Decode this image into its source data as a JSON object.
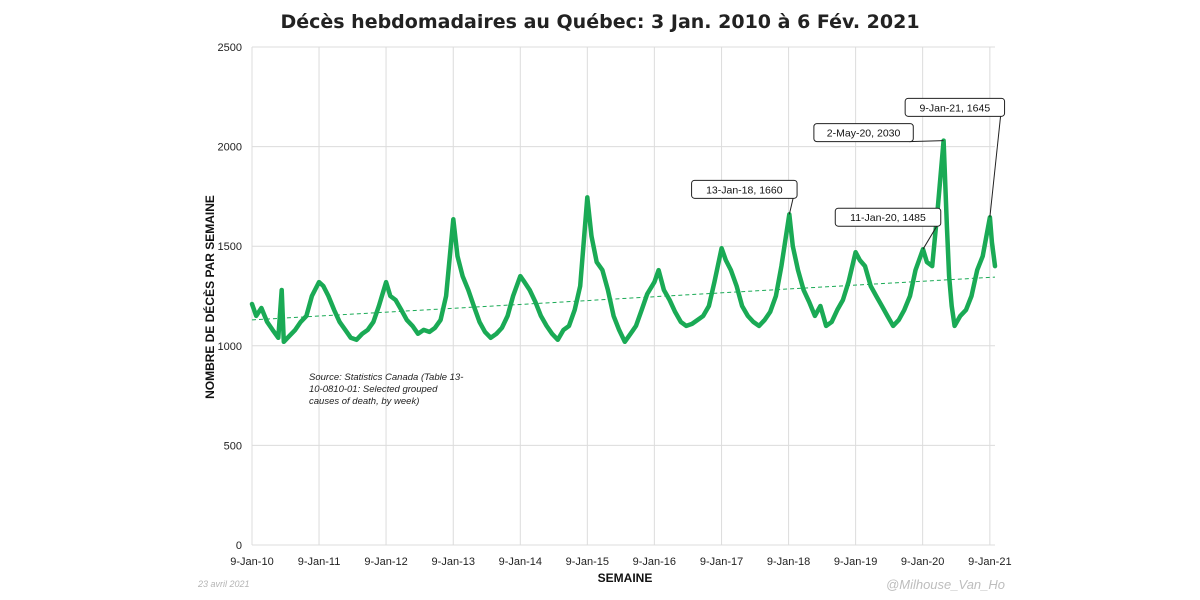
{
  "title": "Décès hebdomadaires au Québec: 3 Jan. 2010 à 6 Fév. 2021",
  "source_note": [
    "Source: Statistics Canada (Table 13-",
    "10-0810-01: Selected grouped",
    "causes of death, by week)"
  ],
  "footer": {
    "date": "23 avril 2021",
    "handle": "@Milhouse_Van_Ho"
  },
  "colors": {
    "line": "#1aaa55",
    "trend": "#1aaa55",
    "grid": "#dcdcdc"
  },
  "chart_data": {
    "type": "line",
    "title": "Décès hebdomadaires au Québec: 3 Jan. 2010 à 6 Fév. 2021",
    "xlabel": "SEMAINE",
    "ylabel": "NOMBRE DE DÉCÈS PAR SEMAINE",
    "ylim": [
      0,
      2500
    ],
    "y_ticks": [
      0,
      500,
      1000,
      1500,
      2000,
      2500
    ],
    "x_ticks": [
      {
        "x": "2010-01-09",
        "label": "9-Jan-10"
      },
      {
        "x": "2011-01-09",
        "label": "9-Jan-11"
      },
      {
        "x": "2012-01-09",
        "label": "9-Jan-12"
      },
      {
        "x": "2013-01-09",
        "label": "9-Jan-13"
      },
      {
        "x": "2014-01-09",
        "label": "9-Jan-14"
      },
      {
        "x": "2015-01-09",
        "label": "9-Jan-15"
      },
      {
        "x": "2016-01-09",
        "label": "9-Jan-16"
      },
      {
        "x": "2017-01-09",
        "label": "9-Jan-17"
      },
      {
        "x": "2018-01-09",
        "label": "9-Jan-18"
      },
      {
        "x": "2019-01-09",
        "label": "9-Jan-19"
      },
      {
        "x": "2020-01-09",
        "label": "9-Jan-20"
      },
      {
        "x": "2021-01-09",
        "label": "9-Jan-21"
      }
    ],
    "xlim": [
      "2010-01-09",
      "2021-02-06"
    ],
    "grid": true,
    "series": [
      {
        "points": [
          [
            "2010-01-09",
            1210
          ],
          [
            "2010-02-01",
            1150
          ],
          [
            "2010-03-01",
            1190
          ],
          [
            "2010-04-01",
            1120
          ],
          [
            "2010-05-01",
            1080
          ],
          [
            "2010-06-01",
            1040
          ],
          [
            "2010-06-20",
            1280
          ],
          [
            "2010-07-01",
            1020
          ],
          [
            "2010-08-01",
            1050
          ],
          [
            "2010-09-01",
            1080
          ],
          [
            "2010-10-01",
            1120
          ],
          [
            "2010-11-01",
            1150
          ],
          [
            "2010-12-01",
            1250
          ],
          [
            "2011-01-09",
            1320
          ],
          [
            "2011-02-01",
            1300
          ],
          [
            "2011-03-01",
            1250
          ],
          [
            "2011-04-01",
            1180
          ],
          [
            "2011-05-01",
            1120
          ],
          [
            "2011-06-01",
            1080
          ],
          [
            "2011-07-01",
            1040
          ],
          [
            "2011-08-01",
            1030
          ],
          [
            "2011-09-01",
            1060
          ],
          [
            "2011-10-01",
            1080
          ],
          [
            "2011-11-01",
            1120
          ],
          [
            "2011-12-01",
            1200
          ],
          [
            "2012-01-09",
            1320
          ],
          [
            "2012-02-01",
            1250
          ],
          [
            "2012-03-01",
            1230
          ],
          [
            "2012-04-01",
            1180
          ],
          [
            "2012-05-01",
            1130
          ],
          [
            "2012-06-01",
            1100
          ],
          [
            "2012-07-01",
            1060
          ],
          [
            "2012-08-01",
            1080
          ],
          [
            "2012-09-01",
            1070
          ],
          [
            "2012-10-01",
            1090
          ],
          [
            "2012-11-01",
            1130
          ],
          [
            "2012-12-01",
            1250
          ],
          [
            "2013-01-09",
            1635
          ],
          [
            "2013-02-01",
            1450
          ],
          [
            "2013-03-01",
            1350
          ],
          [
            "2013-04-01",
            1280
          ],
          [
            "2013-05-01",
            1200
          ],
          [
            "2013-06-01",
            1120
          ],
          [
            "2013-07-01",
            1070
          ],
          [
            "2013-08-01",
            1040
          ],
          [
            "2013-09-01",
            1060
          ],
          [
            "2013-10-01",
            1090
          ],
          [
            "2013-11-01",
            1150
          ],
          [
            "2013-12-01",
            1250
          ],
          [
            "2014-01-09",
            1350
          ],
          [
            "2014-02-01",
            1320
          ],
          [
            "2014-03-01",
            1280
          ],
          [
            "2014-04-01",
            1220
          ],
          [
            "2014-05-01",
            1150
          ],
          [
            "2014-06-01",
            1100
          ],
          [
            "2014-07-01",
            1060
          ],
          [
            "2014-08-01",
            1030
          ],
          [
            "2014-09-01",
            1080
          ],
          [
            "2014-10-01",
            1100
          ],
          [
            "2014-11-01",
            1180
          ],
          [
            "2014-12-01",
            1300
          ],
          [
            "2015-01-09",
            1745
          ],
          [
            "2015-02-01",
            1550
          ],
          [
            "2015-03-01",
            1420
          ],
          [
            "2015-04-01",
            1380
          ],
          [
            "2015-05-01",
            1280
          ],
          [
            "2015-06-01",
            1150
          ],
          [
            "2015-07-01",
            1080
          ],
          [
            "2015-08-01",
            1020
          ],
          [
            "2015-09-01",
            1060
          ],
          [
            "2015-10-01",
            1100
          ],
          [
            "2015-11-01",
            1180
          ],
          [
            "2015-12-01",
            1260
          ],
          [
            "2016-01-09",
            1320
          ],
          [
            "2016-02-01",
            1380
          ],
          [
            "2016-03-01",
            1280
          ],
          [
            "2016-04-01",
            1230
          ],
          [
            "2016-05-01",
            1170
          ],
          [
            "2016-06-01",
            1120
          ],
          [
            "2016-07-01",
            1100
          ],
          [
            "2016-08-01",
            1110
          ],
          [
            "2016-09-01",
            1130
          ],
          [
            "2016-10-01",
            1150
          ],
          [
            "2016-11-01",
            1200
          ],
          [
            "2016-12-01",
            1320
          ],
          [
            "2017-01-09",
            1490
          ],
          [
            "2017-02-01",
            1430
          ],
          [
            "2017-03-01",
            1380
          ],
          [
            "2017-04-01",
            1300
          ],
          [
            "2017-05-01",
            1200
          ],
          [
            "2017-06-01",
            1150
          ],
          [
            "2017-07-01",
            1120
          ],
          [
            "2017-08-01",
            1100
          ],
          [
            "2017-09-01",
            1130
          ],
          [
            "2017-10-01",
            1170
          ],
          [
            "2017-11-01",
            1250
          ],
          [
            "2017-12-01",
            1400
          ],
          [
            "2018-01-13",
            1660
          ],
          [
            "2018-02-01",
            1500
          ],
          [
            "2018-03-01",
            1380
          ],
          [
            "2018-04-01",
            1280
          ],
          [
            "2018-05-01",
            1220
          ],
          [
            "2018-06-01",
            1150
          ],
          [
            "2018-07-01",
            1200
          ],
          [
            "2018-08-01",
            1100
          ],
          [
            "2018-09-01",
            1120
          ],
          [
            "2018-10-01",
            1180
          ],
          [
            "2018-11-01",
            1230
          ],
          [
            "2018-12-01",
            1320
          ],
          [
            "2019-01-09",
            1470
          ],
          [
            "2019-02-01",
            1430
          ],
          [
            "2019-03-01",
            1400
          ],
          [
            "2019-04-01",
            1300
          ],
          [
            "2019-05-01",
            1250
          ],
          [
            "2019-06-01",
            1200
          ],
          [
            "2019-07-01",
            1150
          ],
          [
            "2019-08-01",
            1100
          ],
          [
            "2019-09-01",
            1130
          ],
          [
            "2019-10-01",
            1180
          ],
          [
            "2019-11-01",
            1250
          ],
          [
            "2019-12-01",
            1380
          ],
          [
            "2020-01-11",
            1485
          ],
          [
            "2020-02-01",
            1420
          ],
          [
            "2020-03-01",
            1400
          ],
          [
            "2020-04-01",
            1700
          ],
          [
            "2020-05-02",
            2030
          ],
          [
            "2020-05-20",
            1600
          ],
          [
            "2020-06-01",
            1350
          ],
          [
            "2020-06-15",
            1200
          ],
          [
            "2020-07-01",
            1100
          ],
          [
            "2020-08-01",
            1150
          ],
          [
            "2020-09-01",
            1180
          ],
          [
            "2020-10-01",
            1250
          ],
          [
            "2020-11-01",
            1380
          ],
          [
            "2020-12-01",
            1450
          ],
          [
            "2021-01-09",
            1645
          ],
          [
            "2021-01-20",
            1520
          ],
          [
            "2021-02-06",
            1400
          ]
        ]
      }
    ],
    "trendline": {
      "from": [
        "2010-01-09",
        1130
      ],
      "to": [
        "2021-02-06",
        1345
      ],
      "style": "dashed"
    },
    "annotations": [
      {
        "x": "2018-01-13",
        "y": 1660,
        "label": "13-Jan-18, 1660"
      },
      {
        "x": "2020-01-11",
        "y": 1485,
        "label": "11-Jan-20, 1485"
      },
      {
        "x": "2020-05-02",
        "y": 2030,
        "label": "2-May-20, 2030"
      },
      {
        "x": "2021-01-09",
        "y": 1645,
        "label": "9-Jan-21, 1645"
      }
    ]
  }
}
